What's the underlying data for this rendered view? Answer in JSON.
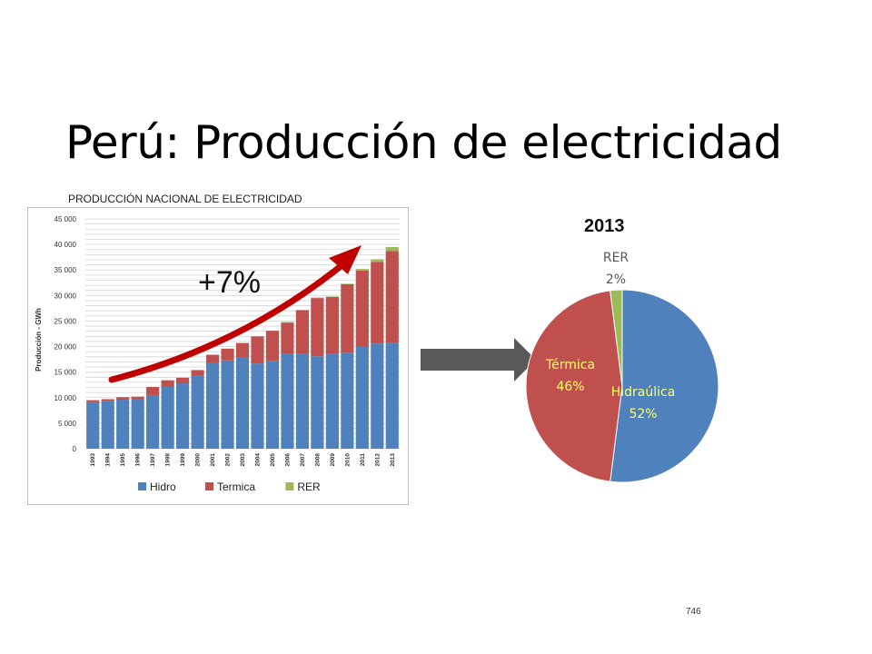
{
  "slide": {
    "title": "Perú: Producción de electricidad",
    "page_number": "746",
    "growth_label": "+7%"
  },
  "chart_data": [
    {
      "type": "bar",
      "stacked": true,
      "title": "PRODUCCIÓN NACIONAL DE ELECTRICIDAD",
      "xlabel": "",
      "ylabel": "Producción - GWh",
      "ylim": [
        0,
        45000
      ],
      "yticks": [
        0,
        5000,
        10000,
        15000,
        20000,
        25000,
        30000,
        35000,
        40000,
        45000
      ],
      "ytick_labels": [
        "0",
        "5 000",
        "10 000",
        "15 000",
        "20 000",
        "25 000",
        "30 000",
        "35 000",
        "40 000",
        "45 000"
      ],
      "categories": [
        "1993",
        "1994",
        "1995",
        "1996",
        "1997",
        "1998",
        "1999",
        "2000",
        "2001",
        "2002",
        "2003",
        "2004",
        "2005",
        "2006",
        "2007",
        "2008",
        "2009",
        "2010",
        "2011",
        "2012",
        "2013"
      ],
      "series": [
        {
          "name": "Hidro",
          "color": "#4f81bd",
          "values": [
            9100,
            9300,
            9600,
            9700,
            10500,
            12100,
            12800,
            14300,
            16800,
            17300,
            17800,
            16700,
            17200,
            18600,
            18600,
            18100,
            18600,
            18800,
            20100,
            20600,
            20700
          ]
        },
        {
          "name": "Termica",
          "color": "#c0504d",
          "values": [
            400,
            400,
            500,
            500,
            1600,
            1300,
            1100,
            1100,
            1600,
            2300,
            2900,
            5300,
            5900,
            6100,
            8500,
            11400,
            11100,
            13400,
            14800,
            16000,
            18000
          ]
        },
        {
          "name": "RER",
          "color": "#9bbb59",
          "values": [
            0,
            0,
            0,
            0,
            0,
            0,
            0,
            0,
            0,
            0,
            0,
            0,
            0,
            100,
            100,
            100,
            100,
            100,
            300,
            500,
            800
          ]
        }
      ],
      "legend": "bottom",
      "grid": true
    },
    {
      "type": "pie",
      "title": "2013",
      "slices": [
        {
          "name": "Hidraúlica",
          "value": 52,
          "label": "52%",
          "color": "#4f81bd"
        },
        {
          "name": "Térmica",
          "value": 46,
          "label": "46%",
          "color": "#c0504d"
        },
        {
          "name": "RER",
          "value": 2,
          "label": "2%",
          "color": "#9bbb59"
        }
      ]
    }
  ]
}
